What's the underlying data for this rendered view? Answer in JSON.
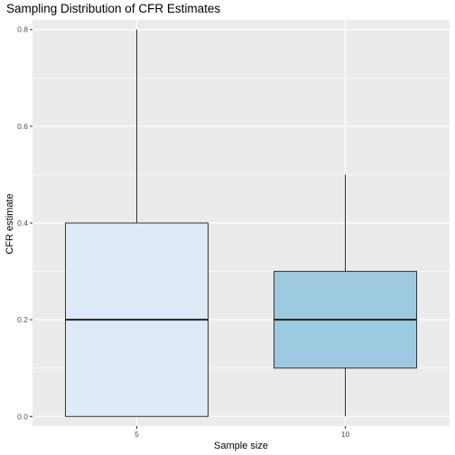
{
  "chart_data": {
    "type": "boxplot",
    "title": "Sampling Distribution of CFR Estimates",
    "xlabel": "Sample size",
    "ylabel": "CFR estimate",
    "categories": [
      "5",
      "10"
    ],
    "ylim": [
      -0.02,
      0.82
    ],
    "yticks": [
      0.0,
      0.2,
      0.4,
      0.6,
      0.8
    ],
    "ytick_labels": [
      "0.0",
      "0.2",
      "0.4",
      "0.6",
      "0.8"
    ],
    "boxes": [
      {
        "category": "5",
        "min": 0.0,
        "q1": 0.0,
        "median": 0.2,
        "q3": 0.4,
        "max": 0.8,
        "fill": "#deebf7"
      },
      {
        "category": "10",
        "min": 0.0,
        "q1": 0.1,
        "median": 0.2,
        "q3": 0.3,
        "max": 0.5,
        "fill": "#9ecae1"
      }
    ],
    "panel_background": "#ebebeb",
    "grid_color": "#ffffff",
    "box_outline": "#333333",
    "legend": "none"
  }
}
